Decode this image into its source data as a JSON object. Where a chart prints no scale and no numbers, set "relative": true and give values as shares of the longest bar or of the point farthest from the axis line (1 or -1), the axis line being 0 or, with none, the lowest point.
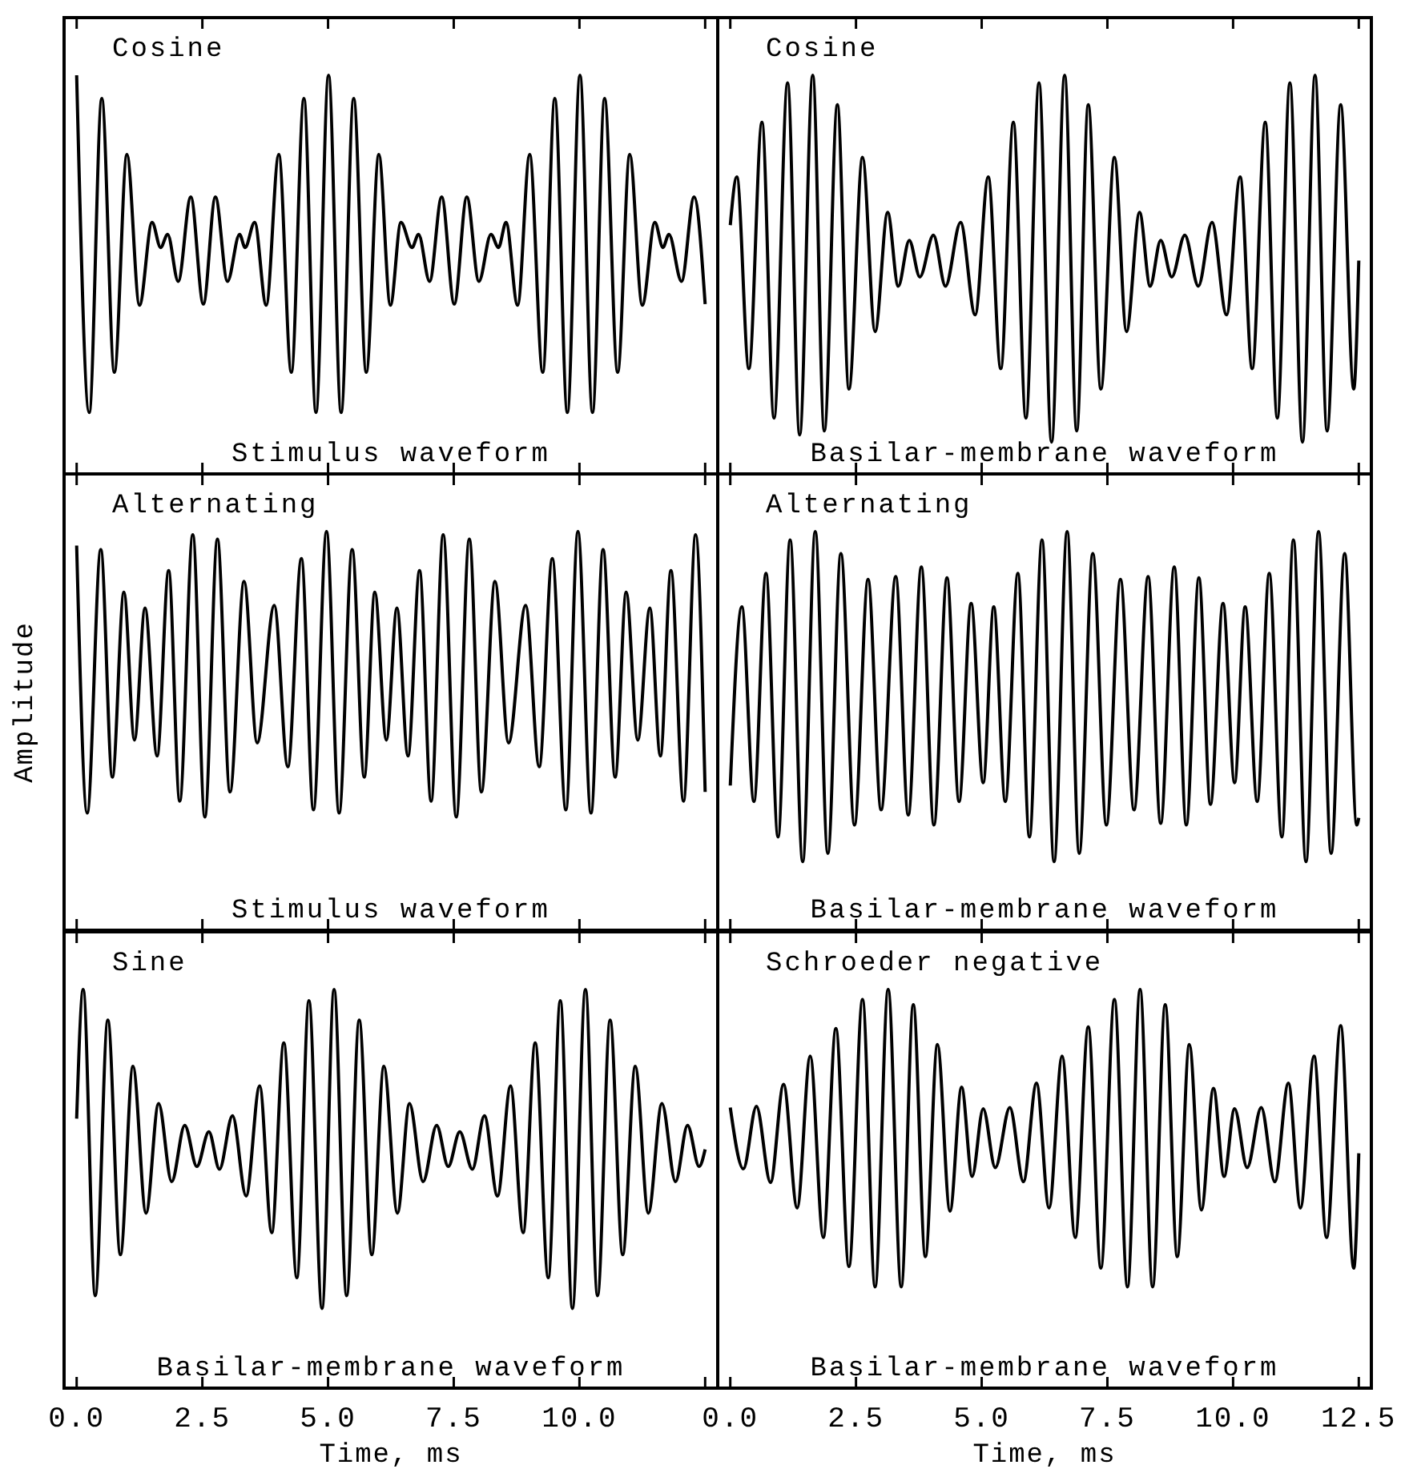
{
  "chart_data": [
    {
      "type": "line",
      "title": "Cosine",
      "annotations": [
        "Stimulus waveform"
      ],
      "relative": true,
      "color": "#000000",
      "xlim": [
        -0.25,
        12.75
      ],
      "xticks": [
        0,
        2.5,
        5,
        7.5,
        10,
        12.5
      ],
      "tick_labels": false,
      "x": [
        0,
        0.25,
        0.5,
        0.75,
        1,
        1.25,
        1.5,
        1.67,
        1.81,
        2.02,
        2.27,
        2.52,
        2.76,
        3,
        3.24,
        3.35,
        3.54,
        3.77,
        4.02,
        4.27,
        4.52,
        4.76,
        5.01,
        5.26,
        5.51,
        5.76,
        6.01,
        6.24,
        6.45,
        6.67,
        6.8,
        7.02,
        7.26,
        7.51,
        7.76,
        8,
        8.24,
        8.39,
        8.54,
        8.77,
        9.01,
        9.27,
        9.51,
        9.76,
        10.01,
        10.26,
        10.5,
        10.76,
        11,
        11.25,
        11.5,
        11.66,
        11.78,
        12.03,
        12.28,
        12.5
      ],
      "values": [
        1,
        0.154,
        0.942,
        0.255,
        0.801,
        0.423,
        0.631,
        0.568,
        0.601,
        0.483,
        0.695,
        0.426,
        0.695,
        0.483,
        0.601,
        0.568,
        0.631,
        0.423,
        0.801,
        0.255,
        0.942,
        0.154,
        1,
        0.154,
        0.942,
        0.255,
        0.801,
        0.423,
        0.631,
        0.568,
        0.601,
        0.483,
        0.695,
        0.426,
        0.695,
        0.483,
        0.601,
        0.568,
        0.631,
        0.423,
        0.801,
        0.255,
        0.942,
        0.154,
        1,
        0.154,
        0.942,
        0.255,
        0.801,
        0.423,
        0.631,
        0.568,
        0.601,
        0.483,
        0.695,
        0.426
      ]
    },
    {
      "type": "line",
      "title": "Cosine",
      "annotations": [
        "Basilar-membrane waveform"
      ],
      "relative": true,
      "color": "#000000",
      "xlim": [
        -0.25,
        12.75
      ],
      "xticks": [
        0,
        2.5,
        5,
        7.5,
        10,
        12.5
      ],
      "tick_labels": false,
      "x": [
        0,
        0.13,
        0.37,
        0.63,
        0.87,
        1.14,
        1.38,
        1.64,
        1.87,
        2.13,
        2.36,
        2.63,
        2.88,
        3.13,
        3.34,
        3.56,
        3.77,
        4.04,
        4.28,
        4.58,
        4.87,
        5.13,
        5.38,
        5.63,
        5.88,
        6.14,
        6.39,
        6.65,
        6.89,
        7.12,
        7.37,
        7.64,
        7.88,
        8.14,
        8.35,
        8.56,
        8.78,
        9.04,
        9.31,
        9.58,
        9.87,
        10.14,
        10.38,
        10.64,
        10.88,
        11.13,
        11.38,
        11.63,
        11.87,
        12.14,
        12.4,
        12.5
      ],
      "values": [
        0.624,
        0.745,
        0.264,
        0.882,
        0.14,
        0.981,
        0.098,
        1,
        0.108,
        0.926,
        0.213,
        0.794,
        0.357,
        0.656,
        0.471,
        0.586,
        0.494,
        0.599,
        0.471,
        0.631,
        0.399,
        0.745,
        0.264,
        0.882,
        0.14,
        0.981,
        0.08,
        1,
        0.108,
        0.926,
        0.213,
        0.794,
        0.357,
        0.656,
        0.471,
        0.586,
        0.494,
        0.599,
        0.471,
        0.631,
        0.399,
        0.745,
        0.264,
        0.882,
        0.14,
        0.981,
        0.08,
        1,
        0.108,
        0.926,
        0.213,
        0.535
      ]
    },
    {
      "type": "line",
      "title": "Alternating",
      "annotations": [
        "Stimulus waveform"
      ],
      "ylabel": "Amplitude",
      "relative": true,
      "color": "#000000",
      "xlim": [
        -0.25,
        12.75
      ],
      "xticks": [
        0,
        2.5,
        5,
        7.5,
        10,
        12.5
      ],
      "tick_labels": false,
      "x": [
        0,
        0.21,
        0.48,
        0.71,
        0.94,
        1.15,
        1.36,
        1.6,
        1.83,
        2.05,
        2.31,
        2.55,
        2.8,
        3.05,
        3.33,
        3.59,
        3.93,
        4.2,
        4.47,
        4.71,
        4.97,
        5.22,
        5.48,
        5.72,
        5.93,
        6.16,
        6.37,
        6.59,
        6.82,
        7.05,
        7.29,
        7.55,
        7.81,
        8.05,
        8.32,
        8.59,
        8.93,
        9.2,
        9.46,
        9.73,
        9.97,
        10.23,
        10.47,
        10.71,
        10.93,
        11.16,
        11.4,
        11.61,
        11.82,
        12.07,
        12.31,
        12.5
      ],
      "values": [
        0.965,
        0.294,
        0.955,
        0.384,
        0.848,
        0.477,
        0.808,
        0.437,
        0.902,
        0.324,
        0.992,
        0.284,
        0.981,
        0.347,
        0.875,
        0.47,
        0.815,
        0.41,
        0.932,
        0.302,
        1,
        0.294,
        0.955,
        0.384,
        0.848,
        0.477,
        0.808,
        0.437,
        0.902,
        0.324,
        0.992,
        0.284,
        0.981,
        0.347,
        0.875,
        0.47,
        0.815,
        0.41,
        0.932,
        0.302,
        1,
        0.294,
        0.955,
        0.384,
        0.848,
        0.477,
        0.808,
        0.437,
        0.902,
        0.324,
        0.992,
        0.347
      ]
    },
    {
      "type": "line",
      "title": "Alternating",
      "annotations": [
        "Basilar-membrane waveform"
      ],
      "relative": true,
      "color": "#000000",
      "xlim": [
        -0.25,
        12.75
      ],
      "xticks": [
        0,
        2.5,
        5,
        7.5,
        10,
        12.5
      ],
      "tick_labels": false,
      "x": [
        0,
        0.23,
        0.47,
        0.71,
        0.95,
        1.19,
        1.44,
        1.69,
        1.94,
        2.2,
        2.47,
        2.74,
        3,
        3.29,
        3.54,
        3.8,
        4.05,
        4.31,
        4.55,
        4.79,
        5.03,
        5.24,
        5.47,
        5.72,
        5.95,
        6.2,
        6.44,
        6.7,
        6.94,
        7.21,
        7.48,
        7.76,
        8.03,
        8.31,
        8.56,
        8.83,
        9.07,
        9.32,
        9.55,
        9.8,
        10.03,
        10.24,
        10.48,
        10.72,
        10.97,
        11.2,
        11.45,
        11.7,
        11.95,
        12.22,
        12.46,
        12.5
      ],
      "values": [
        0.363,
        0.811,
        0.323,
        0.895,
        0.234,
        0.979,
        0.172,
        1,
        0.193,
        0.945,
        0.264,
        0.88,
        0.302,
        0.887,
        0.289,
        0.911,
        0.264,
        0.884,
        0.323,
        0.82,
        0.37,
        0.811,
        0.323,
        0.895,
        0.234,
        0.979,
        0.172,
        1,
        0.193,
        0.945,
        0.264,
        0.88,
        0.302,
        0.887,
        0.268,
        0.911,
        0.264,
        0.884,
        0.316,
        0.82,
        0.37,
        0.811,
        0.323,
        0.895,
        0.234,
        0.979,
        0.172,
        1,
        0.193,
        0.945,
        0.264,
        0.282
      ]
    },
    {
      "type": "line",
      "title": "Sine",
      "annotations": [
        "Basilar-membrane waveform"
      ],
      "xlabel": "Time, ms",
      "relative": true,
      "color": "#000000",
      "xlim": [
        -0.25,
        12.75
      ],
      "xticks": [
        {
          "value": 0,
          "label": "0.0"
        },
        2.5,
        {
          "value": 5,
          "label": "5.0"
        },
        7.5,
        {
          "value": 10,
          "label": "10.0"
        },
        {
          "value": 12.5,
          "label": null
        }
      ],
      "tick_labels": "x",
      "x": [
        0,
        0.13,
        0.37,
        0.62,
        0.87,
        1.12,
        1.38,
        1.63,
        1.89,
        2.15,
        2.39,
        2.63,
        2.84,
        3.1,
        3.37,
        3.64,
        3.88,
        4.12,
        4.38,
        4.62,
        4.88,
        5.12,
        5.37,
        5.62,
        5.87,
        6.11,
        6.38,
        6.62,
        6.89,
        7.16,
        7.39,
        7.62,
        7.87,
        8.11,
        8.37,
        8.63,
        8.88,
        9.12,
        9.38,
        9.62,
        9.86,
        10.12,
        10.36,
        10.61,
        10.86,
        11.11,
        11.37,
        11.64,
        11.91,
        12.15,
        12.38,
        12.5
      ],
      "values": [
        0.676,
        1,
        0.232,
        0.923,
        0.335,
        0.807,
        0.439,
        0.714,
        0.518,
        0.659,
        0.556,
        0.643,
        0.549,
        0.683,
        0.482,
        0.758,
        0.39,
        0.866,
        0.277,
        0.972,
        0.2,
        1,
        0.232,
        0.923,
        0.335,
        0.807,
        0.439,
        0.714,
        0.518,
        0.659,
        0.556,
        0.643,
        0.549,
        0.683,
        0.482,
        0.758,
        0.39,
        0.866,
        0.277,
        0.972,
        0.2,
        1,
        0.232,
        0.923,
        0.335,
        0.807,
        0.439,
        0.714,
        0.518,
        0.659,
        0.556,
        0.599
      ]
    },
    {
      "type": "line",
      "title": "Schroeder negative",
      "annotations": [
        "Basilar-membrane waveform"
      ],
      "xlabel": "Time, ms",
      "relative": true,
      "color": "#000000",
      "xlim": [
        -0.25,
        12.75
      ],
      "xticks": [
        {
          "value": 0,
          "label": "0.0"
        },
        2.5,
        {
          "value": 5,
          "label": "5.0"
        },
        7.5,
        {
          "value": 10,
          "label": "10.0"
        },
        12.5
      ],
      "tick_labels": "x",
      "x": [
        0,
        0.26,
        0.52,
        0.8,
        1.06,
        1.33,
        1.59,
        1.85,
        2.1,
        2.36,
        2.63,
        2.88,
        3.14,
        3.4,
        3.64,
        3.88,
        4.12,
        4.37,
        4.6,
        4.81,
        5.03,
        5.27,
        5.56,
        5.83,
        6.09,
        6.34,
        6.6,
        6.86,
        7.12,
        7.37,
        7.64,
        7.9,
        8.15,
        8.4,
        8.65,
        8.89,
        9.13,
        9.37,
        9.61,
        9.82,
        10.03,
        10.28,
        10.56,
        10.83,
        11.1,
        11.34,
        11.61,
        11.86,
        12.14,
        12.4,
        12.5
      ],
      "values": [
        0.704,
        0.55,
        0.707,
        0.516,
        0.762,
        0.452,
        0.833,
        0.378,
        0.902,
        0.305,
        0.975,
        0.254,
        1,
        0.254,
        0.962,
        0.33,
        0.862,
        0.444,
        0.755,
        0.531,
        0.701,
        0.553,
        0.704,
        0.518,
        0.765,
        0.452,
        0.833,
        0.378,
        0.906,
        0.301,
        0.975,
        0.254,
        1,
        0.254,
        0.962,
        0.33,
        0.862,
        0.447,
        0.752,
        0.531,
        0.701,
        0.553,
        0.704,
        0.518,
        0.765,
        0.452,
        0.833,
        0.378,
        0.909,
        0.301,
        0.589
      ]
    }
  ]
}
